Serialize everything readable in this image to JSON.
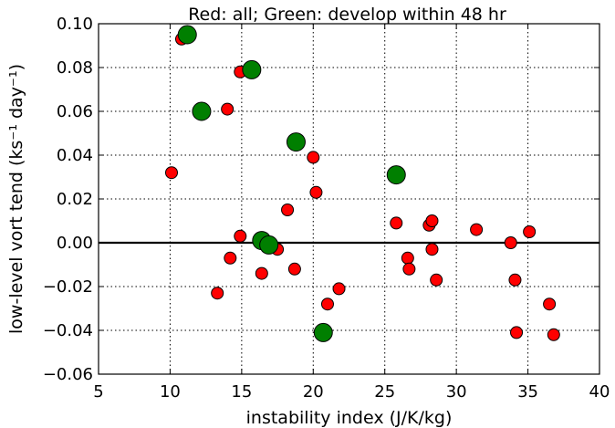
{
  "chart_data": {
    "type": "scatter",
    "title": "Red: all; Green: develop within 48 hr",
    "xlabel": "instability index (J/K/kg)",
    "ylabel": "low-level vort tend (ks⁻¹ day⁻¹)",
    "xlim": [
      5,
      40
    ],
    "ylim": [
      -0.06,
      0.1
    ],
    "xticks": [
      5,
      10,
      15,
      20,
      25,
      30,
      35,
      40
    ],
    "yticks": [
      -0.06,
      -0.04,
      -0.02,
      0.0,
      0.02,
      0.04,
      0.06,
      0.08,
      0.1
    ],
    "xtick_labels": [
      "5",
      "10",
      "15",
      "20",
      "25",
      "30",
      "35",
      "40"
    ],
    "ytick_labels": [
      "−0.06",
      "−0.04",
      "−0.02",
      "0.00",
      "0.02",
      "0.04",
      "0.06",
      "0.08",
      "0.10"
    ],
    "grid": true,
    "reference_line_y": 0.0,
    "series": [
      {
        "color": "#ff0000",
        "marker_size": "small",
        "points": [
          [
            10.1,
            0.032
          ],
          [
            10.8,
            0.093
          ],
          [
            14.0,
            0.061
          ],
          [
            14.9,
            0.078
          ],
          [
            13.3,
            -0.023
          ],
          [
            14.2,
            -0.007
          ],
          [
            14.9,
            0.003
          ],
          [
            16.4,
            -0.014
          ],
          [
            17.5,
            -0.003
          ],
          [
            18.2,
            0.015
          ],
          [
            18.7,
            -0.012
          ],
          [
            20.0,
            0.039
          ],
          [
            20.2,
            0.023
          ],
          [
            21.0,
            -0.028
          ],
          [
            21.8,
            -0.021
          ],
          [
            25.8,
            0.009
          ],
          [
            26.6,
            -0.007
          ],
          [
            26.7,
            -0.012
          ],
          [
            28.1,
            0.008
          ],
          [
            28.3,
            0.01
          ],
          [
            28.3,
            -0.003
          ],
          [
            28.6,
            -0.017
          ],
          [
            31.4,
            0.006
          ],
          [
            33.8,
            0.0
          ],
          [
            34.1,
            -0.017
          ],
          [
            34.2,
            -0.041
          ],
          [
            35.1,
            0.005
          ],
          [
            36.5,
            -0.028
          ],
          [
            36.8,
            -0.042
          ]
        ]
      },
      {
        "color": "#007f00",
        "marker_size": "large",
        "points": [
          [
            11.2,
            0.095
          ],
          [
            12.2,
            0.06
          ],
          [
            15.7,
            0.079
          ],
          [
            16.4,
            0.001
          ],
          [
            16.9,
            -0.001
          ],
          [
            18.8,
            0.046
          ],
          [
            20.7,
            -0.041
          ],
          [
            25.8,
            0.031
          ]
        ]
      }
    ]
  }
}
